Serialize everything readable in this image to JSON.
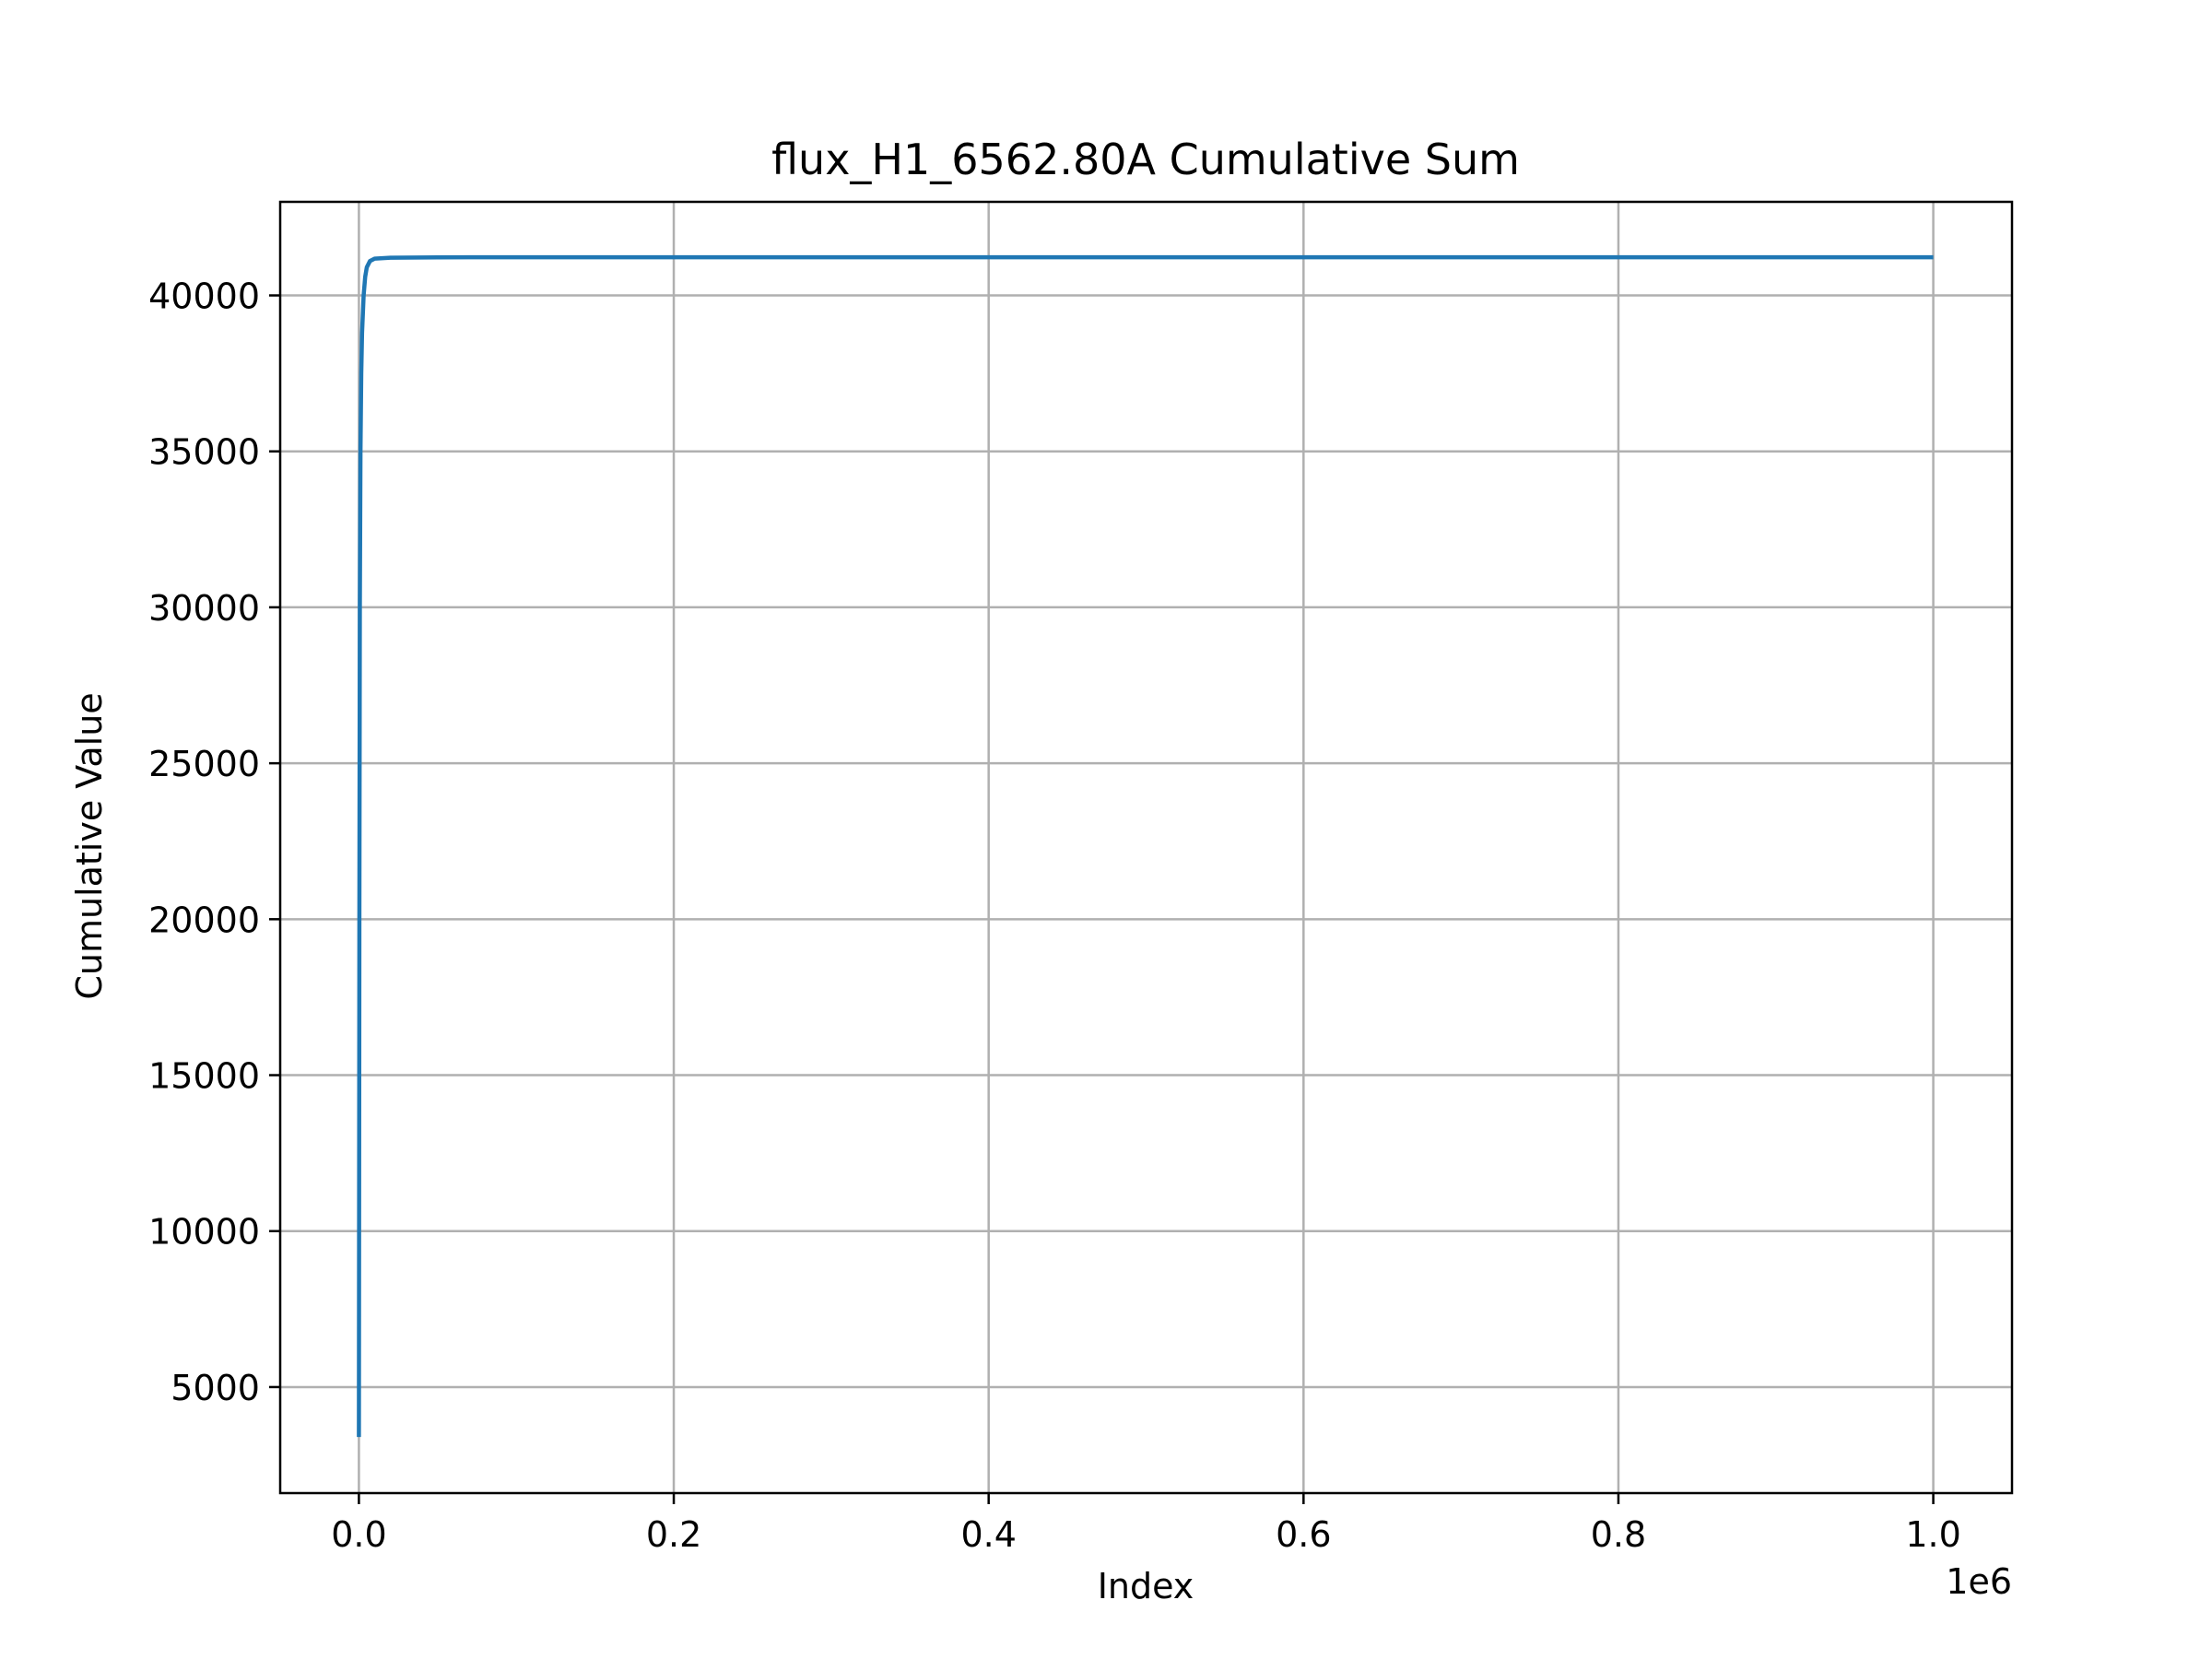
{
  "chart_data": {
    "type": "line",
    "title": "flux_H1_6562.80A Cumulative Sum",
    "xlabel": "Index",
    "ylabel": "Cumulative Value",
    "x_offset_label": "1e6",
    "xlim": [
      -50000,
      1050000
    ],
    "ylim": [
      1600,
      43000
    ],
    "x_ticks": [
      0,
      200000,
      400000,
      600000,
      800000,
      1000000
    ],
    "x_tick_labels": [
      "0.0",
      "0.2",
      "0.4",
      "0.6",
      "0.8",
      "1.0"
    ],
    "y_ticks": [
      5000,
      10000,
      15000,
      20000,
      25000,
      30000,
      35000,
      40000
    ],
    "y_tick_labels": [
      "5000",
      "10000",
      "15000",
      "20000",
      "25000",
      "30000",
      "35000",
      "40000"
    ],
    "grid": true,
    "series": [
      {
        "color": "#1f77b4",
        "x": [
          0,
          300,
          600,
          1000,
          1500,
          2000,
          3000,
          4000,
          5000,
          7000,
          10000,
          20000,
          50000,
          100000,
          300000,
          600000,
          1000000
        ],
        "y": [
          3400,
          20000,
          30000,
          35000,
          37500,
          38800,
          40000,
          40600,
          40900,
          41100,
          41180,
          41210,
          41220,
          41225,
          41225,
          41225,
          41225
        ]
      }
    ]
  }
}
